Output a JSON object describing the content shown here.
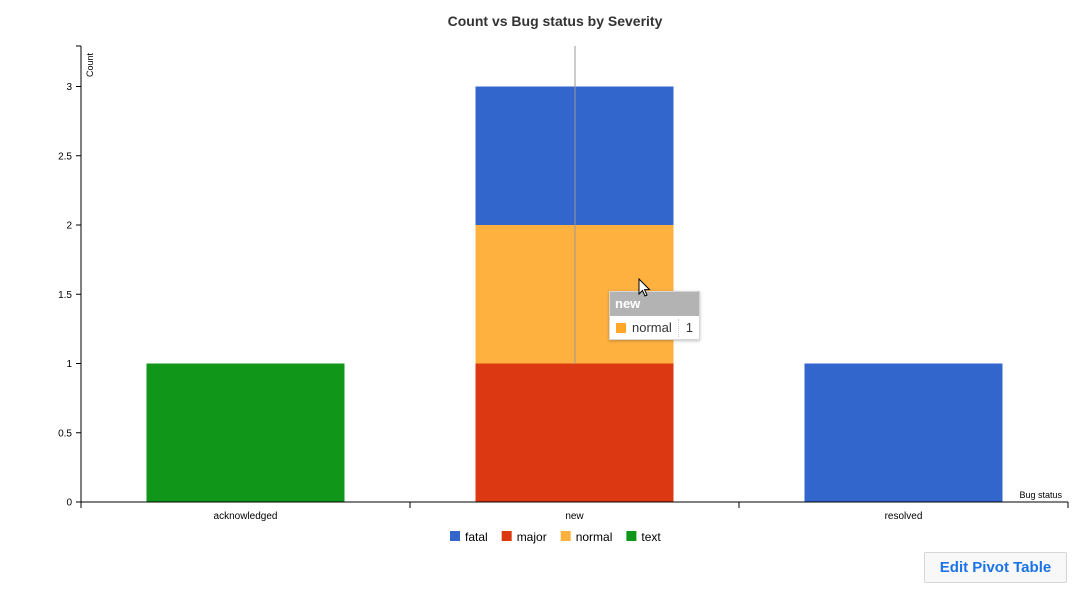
{
  "chart_data": {
    "type": "bar",
    "stacked": true,
    "title": "Count vs Bug status by Severity",
    "xlabel": "Bug status",
    "ylabel": "Count",
    "categories": [
      "acknowledged",
      "new",
      "resolved"
    ],
    "series": [
      {
        "name": "fatal",
        "color": "#3366cc",
        "values": [
          0,
          1,
          1
        ]
      },
      {
        "name": "major",
        "color": "#dc3912",
        "values": [
          0,
          1,
          0
        ]
      },
      {
        "name": "normal",
        "color": "#ffb140",
        "values": [
          0,
          1,
          0
        ]
      },
      {
        "name": "text",
        "color": "#109618",
        "values": [
          1,
          0,
          0
        ]
      }
    ],
    "stack_order_bottom_to_top": [
      "text",
      "major",
      "normal",
      "fatal"
    ],
    "yticks": [
      "0",
      "0.5",
      "1",
      "1.5",
      "2",
      "2.5",
      "3"
    ],
    "ylim": [
      0,
      3.3
    ],
    "legend_position": "bottom",
    "grid": false
  },
  "tooltip": {
    "category": "new",
    "series": "normal",
    "value": "1",
    "color": "#ffa726"
  },
  "edit_button": {
    "label": "Edit Pivot Table"
  }
}
